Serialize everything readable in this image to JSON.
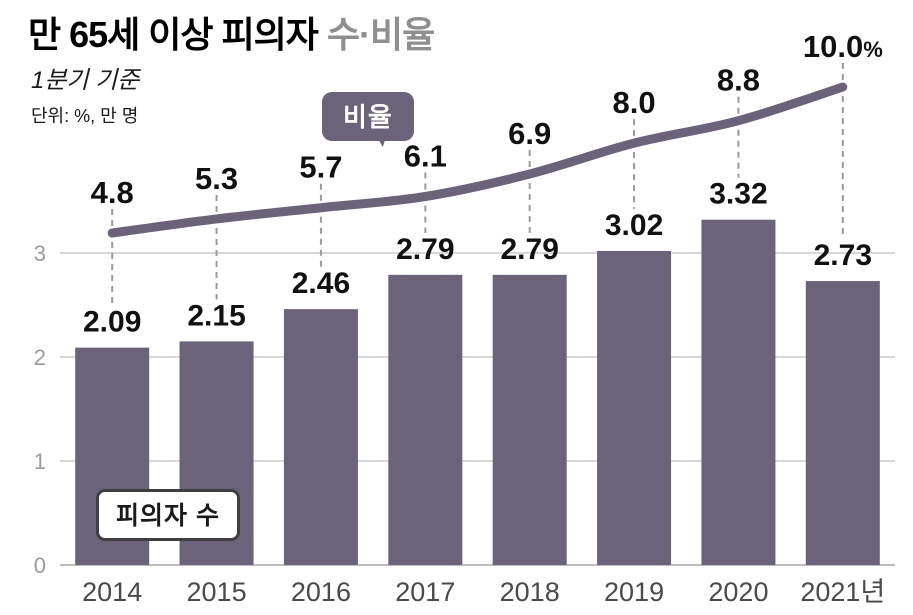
{
  "header": {
    "title_main": "만 65세 이상 피의자",
    "title_sub": " 수·비율",
    "subtitle": "1분기 기준",
    "unit_note": "단위: %, 만 명"
  },
  "chart_data": {
    "type": "bar+line",
    "categories": [
      "2014",
      "2015",
      "2016",
      "2017",
      "2018",
      "2019",
      "2020",
      "2021년"
    ],
    "series": [
      {
        "name": "피의자 수",
        "type": "bar",
        "unit": "만 명",
        "values": [
          2.09,
          2.15,
          2.46,
          2.79,
          2.79,
          3.02,
          3.32,
          2.73
        ],
        "labels": [
          "2.09",
          "2.15",
          "2.46",
          "2.79",
          "2.79",
          "3.02",
          "3.32",
          "2.73"
        ]
      },
      {
        "name": "비율",
        "type": "line",
        "unit": "%",
        "values": [
          4.8,
          5.3,
          5.7,
          6.1,
          6.9,
          8.0,
          8.8,
          10.0
        ],
        "labels": [
          "4.8",
          "5.3",
          "5.7",
          "6.1",
          "6.9",
          "8.0",
          "8.8",
          "10.0%"
        ]
      }
    ],
    "bar_axis": {
      "ticks": [
        0,
        1,
        2,
        3
      ],
      "range": [
        0,
        3.4
      ]
    },
    "line_axis": {
      "range": [
        4.8,
        10.0
      ]
    },
    "legend": {
      "line_label": "비율",
      "bar_label": "피의자 수"
    },
    "grid": true,
    "colors": {
      "bar": "#6a6379",
      "line": "#6a6379",
      "grid": "#d7d7d7",
      "baseline": "#bdbdbd",
      "dash": "#9a9a9a",
      "axis_text": "#9b9b9b",
      "x_text": "#4a4a4a",
      "value_text": "#111111",
      "title_sub": "#8f8f8f"
    }
  }
}
